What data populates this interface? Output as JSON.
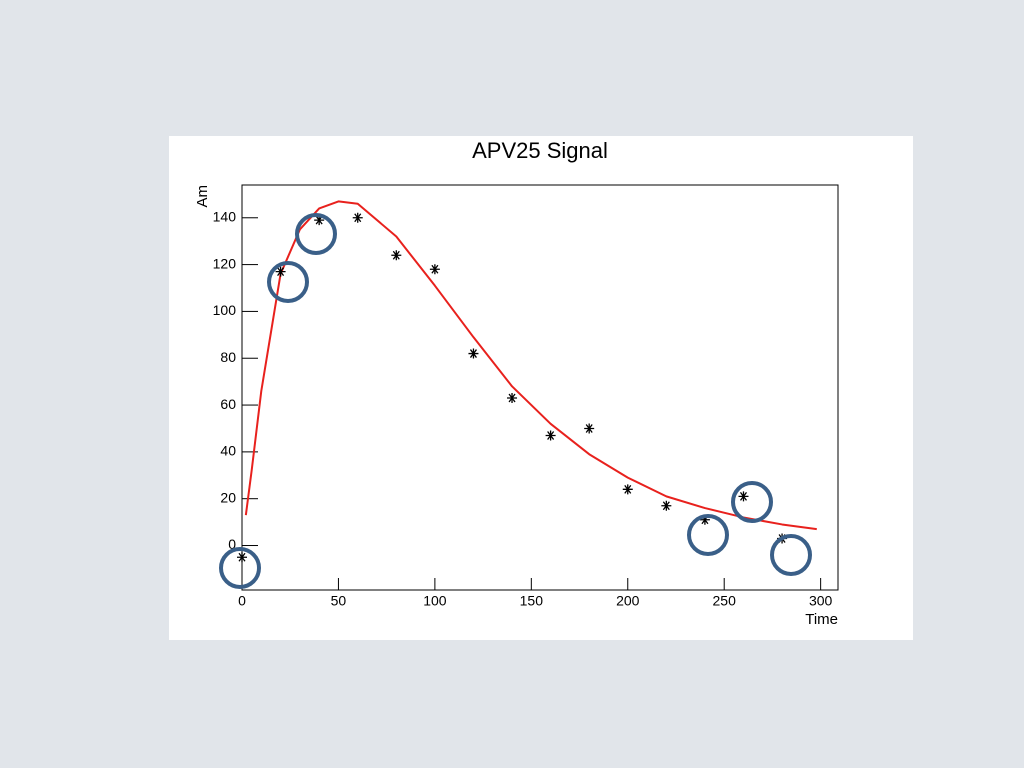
{
  "chart_data": {
    "type": "scatter",
    "title": "APV25 Signal",
    "x_label": "Time",
    "y_label": "Am",
    "xlim": [
      0,
      309
    ],
    "ylim": [
      -19,
      154
    ],
    "xticks": [
      0,
      50,
      100,
      150,
      200,
      250,
      300
    ],
    "yticks": [
      0,
      20,
      40,
      60,
      80,
      100,
      120,
      140
    ],
    "series": [
      {
        "style": "markers",
        "color": "#000000",
        "x": [
          0,
          20,
          40,
          60,
          80,
          100,
          120,
          140,
          160,
          180,
          200,
          220,
          240,
          260,
          280
        ],
        "values": [
          -5,
          117,
          139,
          140,
          124,
          118,
          82,
          63,
          47,
          50,
          24,
          17,
          11,
          21,
          3
        ]
      },
      {
        "style": "line",
        "color": "#e8211d",
        "x": [
          2,
          5,
          10,
          20,
          30,
          40,
          50,
          60,
          80,
          100,
          120,
          140,
          160,
          180,
          200,
          220,
          240,
          260,
          280,
          298
        ],
        "values": [
          13,
          32,
          66,
          116,
          135,
          144,
          147,
          146,
          132,
          111,
          89,
          68,
          52,
          39,
          29,
          21,
          16,
          12,
          9,
          7
        ]
      }
    ]
  }
}
